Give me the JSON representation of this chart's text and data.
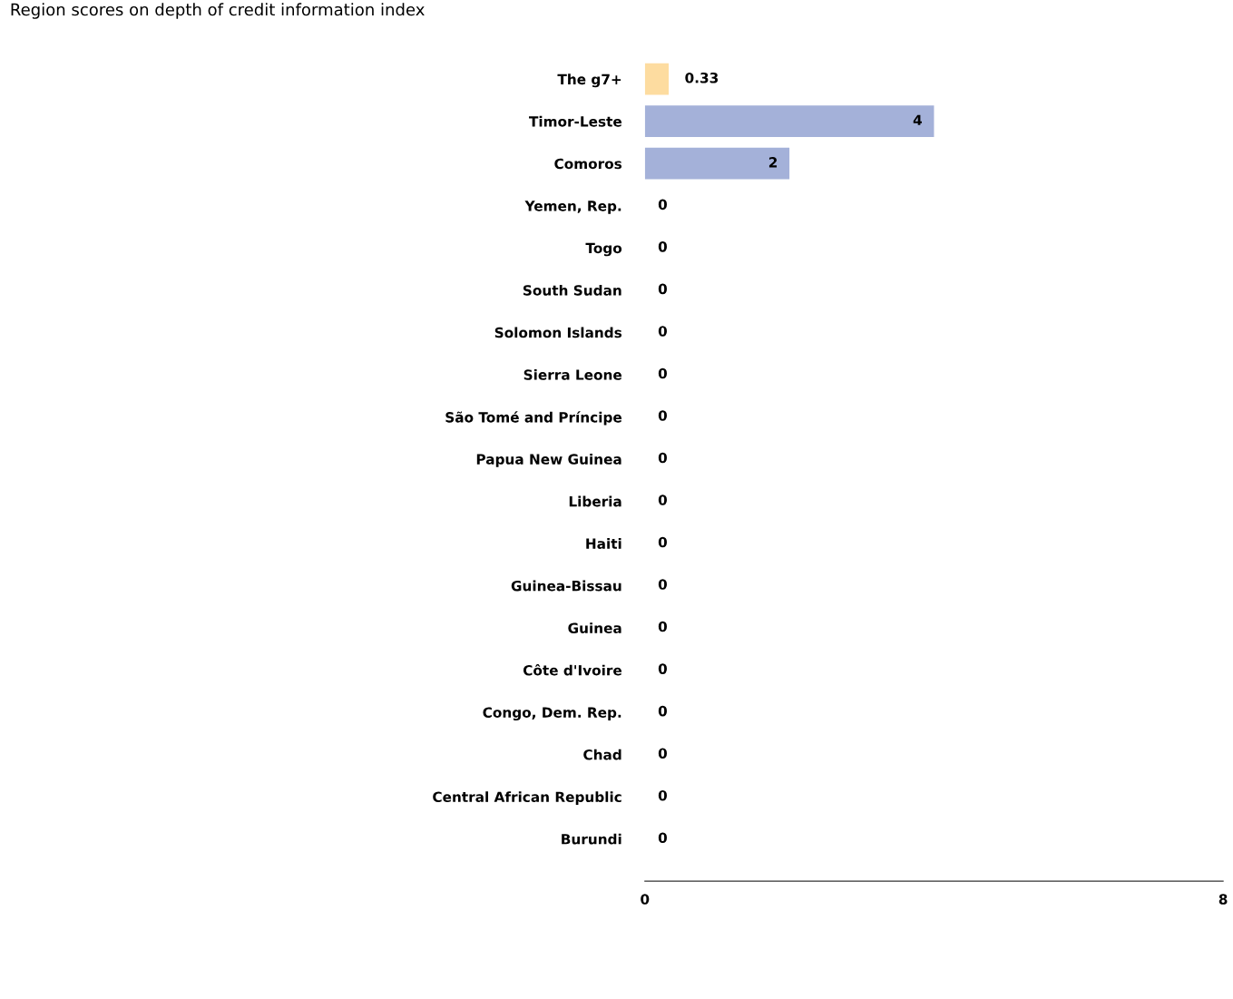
{
  "chart_data": {
    "type": "bar",
    "orientation": "horizontal",
    "title": "Region scores on depth of credit information index",
    "categories": [
      "The g7+",
      "Timor-Leste",
      "Comoros",
      "Yemen, Rep.",
      "Togo",
      "South Sudan",
      "Solomon Islands",
      "Sierra Leone",
      "São Tomé and Príncipe",
      "Papua New Guinea",
      "Liberia",
      "Haiti",
      "Guinea-Bissau",
      "Guinea",
      "Côte d'Ivoire",
      "Congo, Dem. Rep.",
      "Chad",
      "Central African Republic",
      "Burundi"
    ],
    "values": [
      0.33,
      4,
      2,
      0,
      0,
      0,
      0,
      0,
      0,
      0,
      0,
      0,
      0,
      0,
      0,
      0,
      0,
      0,
      0
    ],
    "colors": [
      "#fddca0",
      "#a4b1d9",
      "#a4b1d9",
      "#a4b1d9",
      "#a4b1d9",
      "#a4b1d9",
      "#a4b1d9",
      "#a4b1d9",
      "#a4b1d9",
      "#a4b1d9",
      "#a4b1d9",
      "#a4b1d9",
      "#a4b1d9",
      "#a4b1d9",
      "#a4b1d9",
      "#a4b1d9",
      "#a4b1d9",
      "#a4b1d9",
      "#a4b1d9"
    ],
    "xlim": [
      0,
      8
    ],
    "xticks": [
      0,
      8
    ],
    "data_labels": true,
    "grid": false,
    "legend": false
  }
}
